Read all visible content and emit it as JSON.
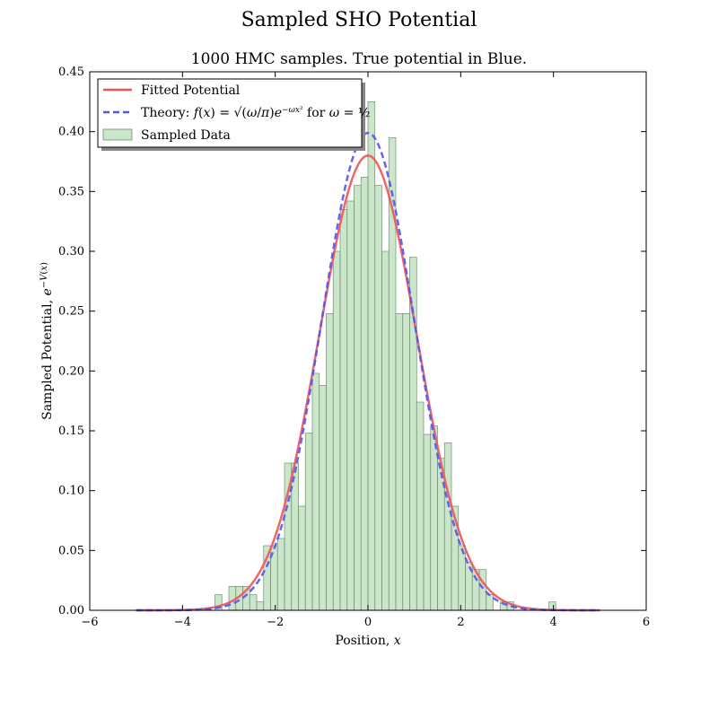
{
  "figure": {
    "suptitle": "Sampled SHO Potential"
  },
  "chart_data": {
    "type": "histogram",
    "title": "1000 HMC samples. True potential in Blue.",
    "xlabel": "Position, x",
    "ylabel": "Sampled Potential, e^{-V(x)}",
    "xlim": [
      -6,
      6
    ],
    "ylim": [
      0,
      0.45
    ],
    "xticks": [
      -6,
      -4,
      -2,
      0,
      2,
      4,
      6
    ],
    "xtick_labels": [
      "−6",
      "−4",
      "−2",
      "0",
      "2",
      "4",
      "6"
    ],
    "yticks": [
      0.0,
      0.05,
      0.1,
      0.15,
      0.2,
      0.25,
      0.3,
      0.35,
      0.4,
      0.45
    ],
    "ytick_labels": [
      "0.00",
      "0.05",
      "0.10",
      "0.15",
      "0.20",
      "0.25",
      "0.30",
      "0.35",
      "0.40",
      "0.45"
    ],
    "grid": false,
    "legend_position": "top-left",
    "histogram": {
      "name": "Sampled Data",
      "color": "#b6dbb6",
      "edge_color": "#6f8f6f",
      "bin_width": 0.15,
      "bin_left_edges": [
        -3.3,
        -3.15,
        -3.0,
        -2.85,
        -2.7,
        -2.55,
        -2.4,
        -2.25,
        -2.1,
        -1.95,
        -1.8,
        -1.65,
        -1.5,
        -1.35,
        -1.2,
        -1.05,
        -0.9,
        -0.75,
        -0.6,
        -0.45,
        -0.3,
        -0.15,
        0.0,
        0.15,
        0.3,
        0.45,
        0.6,
        0.75,
        0.9,
        1.05,
        1.2,
        1.35,
        1.5,
        1.65,
        1.8,
        1.95,
        2.1,
        2.25,
        2.4,
        2.55,
        2.7,
        2.85,
        3.0,
        3.15,
        3.9
      ],
      "values": [
        0.013,
        0.0,
        0.02,
        0.02,
        0.02,
        0.013,
        0.007,
        0.054,
        0.054,
        0.06,
        0.123,
        0.123,
        0.087,
        0.148,
        0.198,
        0.188,
        0.248,
        0.3,
        0.335,
        0.342,
        0.355,
        0.362,
        0.425,
        0.355,
        0.3,
        0.395,
        0.248,
        0.248,
        0.295,
        0.174,
        0.147,
        0.154,
        0.127,
        0.14,
        0.087,
        0.054,
        0.04,
        0.034,
        0.034,
        0.013,
        0.0,
        0.007,
        0.007,
        0.0,
        0.007
      ]
    },
    "series": [
      {
        "name": "Fitted Potential",
        "style": "solid",
        "color": "#ee5555",
        "amplitude": 0.38,
        "sigma": 1.05,
        "x_range": [
          -5,
          5
        ]
      },
      {
        "name": "Theory: f(x) = √(ω/π) e^{−ωx²} for ω = ½",
        "style": "dashed",
        "color": "#5555ee",
        "omega": 0.5,
        "x_range": [
          -5,
          5
        ]
      }
    ]
  }
}
